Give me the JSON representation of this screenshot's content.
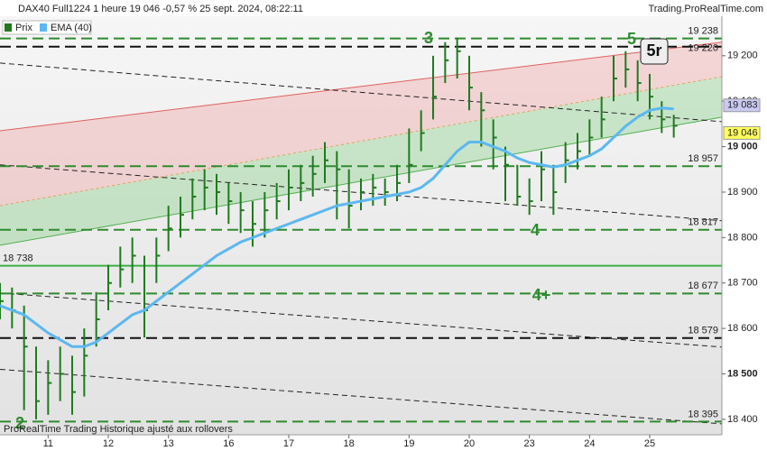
{
  "chart_data": {
    "type": "ohlc",
    "title": "DAX40 Full1224 1 heure 19 046 -0,57 % 25 sept. 2024, 08:22:11",
    "source": "Trading.ProRealTime.com",
    "footer": "ProRealTime Trading Historique ajusté aux rollovers",
    "x": [
      -4,
      -3,
      -2,
      -1,
      0,
      1,
      2,
      3,
      4,
      5,
      6,
      7,
      8,
      9,
      10,
      11,
      12,
      13,
      14,
      15,
      16,
      17,
      18,
      19,
      20,
      21,
      22,
      23,
      24,
      25,
      26,
      27,
      28,
      29,
      30,
      31,
      32,
      33,
      34,
      35,
      36,
      37,
      38,
      39,
      40,
      41,
      42,
      43,
      44,
      45,
      46,
      47,
      48,
      49,
      50,
      51,
      52
    ],
    "xlim": [
      -4,
      56
    ],
    "xticks": [
      {
        "value": 0,
        "label": "11"
      },
      {
        "value": 5,
        "label": "12"
      },
      {
        "value": 10,
        "label": "13"
      },
      {
        "value": 15,
        "label": "16"
      },
      {
        "value": 20,
        "label": "17"
      },
      {
        "value": 25,
        "label": "18"
      },
      {
        "value": 30,
        "label": "19"
      },
      {
        "value": 35,
        "label": "20"
      },
      {
        "value": 40,
        "label": "23"
      },
      {
        "value": 45,
        "label": "24"
      },
      {
        "value": 50,
        "label": "25"
      }
    ],
    "ylim": [
      18366,
      19287
    ],
    "yticks": [
      {
        "value": 18400,
        "label": "18 400"
      },
      {
        "value": 18500,
        "label": "18 500"
      },
      {
        "value": 18600,
        "label": "18 600"
      },
      {
        "value": 18700,
        "label": "18 700"
      },
      {
        "value": 18800,
        "label": "18 800"
      },
      {
        "value": 18900,
        "label": "18 900"
      },
      {
        "value": 19000,
        "label": "19 000"
      },
      {
        "value": 19100,
        "label": "19 100"
      },
      {
        "value": 19200,
        "label": "19 200"
      }
    ],
    "series": [
      {
        "name": "Prix",
        "color": "#1f7a1f",
        "high": [
          18700,
          18690,
          18650,
          18560,
          18530,
          18560,
          18540,
          18600,
          18680,
          18740,
          18780,
          18800,
          18760,
          18800,
          18870,
          18890,
          18930,
          18950,
          18940,
          18920,
          18900,
          18880,
          18900,
          18920,
          18950,
          18960,
          18980,
          19010,
          18990,
          18950,
          18930,
          18940,
          18930,
          18960,
          19040,
          19080,
          19200,
          19230,
          19240,
          19200,
          19120,
          19060,
          19000,
          18960,
          18930,
          18990,
          18960,
          19010,
          19030,
          19060,
          19110,
          19200,
          19210,
          19190,
          19160,
          19100,
          19070
        ],
        "low": [
          18620,
          18600,
          18420,
          18400,
          18410,
          18440,
          18410,
          18450,
          18560,
          18640,
          18690,
          18700,
          18580,
          18700,
          18770,
          18800,
          18840,
          18860,
          18850,
          18830,
          18810,
          18780,
          18800,
          18840,
          18860,
          18880,
          18890,
          18920,
          18840,
          18820,
          18860,
          18870,
          18870,
          18880,
          18920,
          18990,
          19060,
          19140,
          19150,
          19080,
          19000,
          18950,
          18880,
          18870,
          18850,
          18880,
          18850,
          18920,
          18950,
          18980,
          19020,
          19100,
          19130,
          19100,
          19060,
          19030,
          19020
        ],
        "values": [
          18660,
          18640,
          18560,
          18440,
          18480,
          18500,
          18460,
          18540,
          18620,
          18700,
          18730,
          18760,
          18640,
          18760,
          18820,
          18850,
          18890,
          18910,
          18900,
          18880,
          18860,
          18830,
          18860,
          18880,
          18910,
          18920,
          18940,
          18970,
          18950,
          18870,
          18900,
          18910,
          18900,
          18920,
          18960,
          19030,
          19110,
          19190,
          19210,
          19130,
          19080,
          19020,
          18960,
          18890,
          18880,
          18950,
          18900,
          18970,
          18990,
          19020,
          19060,
          19150,
          19170,
          19140,
          19110,
          19060,
          19046
        ]
      },
      {
        "name": "EMA (40)",
        "color": "#5bb8f0",
        "values": [
          18650,
          18640,
          18630,
          18610,
          18590,
          18575,
          18560,
          18560,
          18570,
          18590,
          18610,
          18630,
          18640,
          18660,
          18680,
          18700,
          18720,
          18740,
          18760,
          18775,
          18790,
          18800,
          18810,
          18820,
          18830,
          18840,
          18850,
          18860,
          18870,
          18875,
          18880,
          18885,
          18890,
          18895,
          18900,
          18910,
          18930,
          18960,
          18990,
          19010,
          19010,
          19000,
          18990,
          18975,
          18965,
          18960,
          18955,
          18960,
          18970,
          18980,
          18995,
          19020,
          19045,
          19065,
          19080,
          19085,
          19083
        ]
      }
    ],
    "channel": {
      "x": [
        -4,
        56
      ],
      "upper": [
        19035,
        19230
      ],
      "middle": [
        18870,
        19154
      ],
      "lower": [
        18783,
        19065
      ]
    },
    "trend_lines": [
      {
        "x": [
          -4,
          56
        ],
        "values": [
          19184,
          19055
        ]
      },
      {
        "x": [
          -4,
          56
        ],
        "values": [
          18960,
          18837
        ]
      },
      {
        "x": [
          -4,
          56
        ],
        "values": [
          18678,
          18559
        ]
      },
      {
        "x": [
          -4,
          56
        ],
        "values": [
          18510,
          18390
        ]
      }
    ],
    "levels": [
      {
        "value": 19238,
        "label": "19 238",
        "color": "#2e8b2e",
        "style": "dashed"
      },
      {
        "value": 19220,
        "label": "19 220",
        "color": "#111111",
        "style": "dashed"
      },
      {
        "value": 18957,
        "label": "18 957",
        "color": "#2e8b2e",
        "style": "dashed"
      },
      {
        "value": 18817,
        "label": "18 817",
        "color": "#2e8b2e",
        "style": "dashed"
      },
      {
        "value": 18738,
        "label": "18 738",
        "color": "#3cb043",
        "style": "solid"
      },
      {
        "value": 18677,
        "label": "18 677",
        "color": "#2e8b2e",
        "style": "dashed"
      },
      {
        "value": 18579,
        "label": "18 579",
        "color": "#111111",
        "style": "dashed"
      },
      {
        "value": 18395,
        "label": "18 395",
        "color": "#2e8b2e",
        "style": "dashed"
      }
    ],
    "price_tags": [
      {
        "value": 19083,
        "label": "19 083",
        "color": "#c9c9f2"
      },
      {
        "value": 19046,
        "label": "19 046",
        "color": "#ffff5c"
      }
    ],
    "annotations": [
      "3",
      "5",
      "5r",
      "4",
      "4+",
      "2"
    ]
  }
}
